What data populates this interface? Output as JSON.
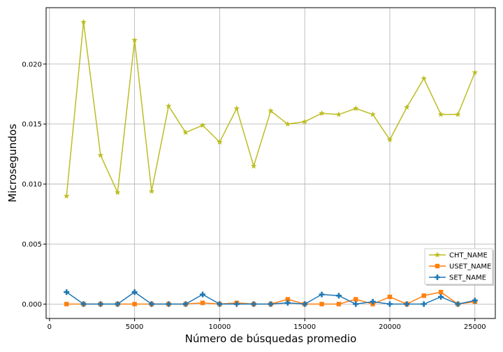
{
  "chart_data": {
    "type": "line",
    "xlabel": "Número de búsquedas promedio",
    "ylabel": "Microsegundos",
    "title": "",
    "xlim": [
      -200,
      26200
    ],
    "ylim": [
      -0.0012,
      0.0247
    ],
    "xticks": [
      0,
      5000,
      10000,
      15000,
      20000,
      25000
    ],
    "yticks": [
      0.0,
      0.005,
      0.01,
      0.015,
      0.02
    ],
    "xtick_labels": [
      "0",
      "5000",
      "10000",
      "15000",
      "20000",
      "25000"
    ],
    "ytick_labels": [
      "0.000",
      "0.005",
      "0.010",
      "0.015",
      "0.020"
    ],
    "grid": true,
    "legend_position": "lower-right",
    "x": [
      1000,
      2000,
      3000,
      4000,
      5000,
      6000,
      7000,
      8000,
      9000,
      10000,
      11000,
      12000,
      13000,
      14000,
      15000,
      16000,
      17000,
      18000,
      19000,
      20000,
      21000,
      22000,
      23000,
      24000,
      25000
    ],
    "series": [
      {
        "name": "CHT_NAME",
        "color": "#bcbd22",
        "marker": "star",
        "values": [
          0.009,
          0.0235,
          0.0124,
          0.0093,
          0.022,
          0.0094,
          0.0165,
          0.0143,
          0.0149,
          0.0135,
          0.0163,
          0.0115,
          0.0161,
          0.015,
          0.0152,
          0.0159,
          0.0158,
          0.0163,
          0.0158,
          0.0137,
          0.0164,
          0.0188,
          0.0158,
          0.0158,
          0.0193
        ]
      },
      {
        "name": "USET_NAME",
        "color": "#ff7f0e",
        "marker": "square",
        "values": [
          0.0,
          0.0,
          0.0,
          0.0,
          0.0,
          0.0,
          0.0,
          0.0,
          0.0001,
          0.0,
          0.0001,
          0.0,
          0.0,
          0.0004,
          0.0,
          0.0,
          0.0,
          0.0004,
          0.0,
          0.0006,
          0.0,
          0.0007,
          0.001,
          0.0,
          0.0002
        ]
      },
      {
        "name": "SET_NAME",
        "color": "#1f77b4",
        "marker": "plus",
        "values": [
          0.001,
          0.0,
          0.0,
          0.0,
          0.001,
          0.0,
          0.0,
          0.0,
          0.0008,
          0.0,
          0.0,
          0.0,
          0.0,
          0.0001,
          0.0,
          0.0008,
          0.0007,
          0.0,
          0.0002,
          0.0,
          0.0,
          0.0,
          0.0006,
          0.0,
          0.0003
        ]
      }
    ]
  }
}
